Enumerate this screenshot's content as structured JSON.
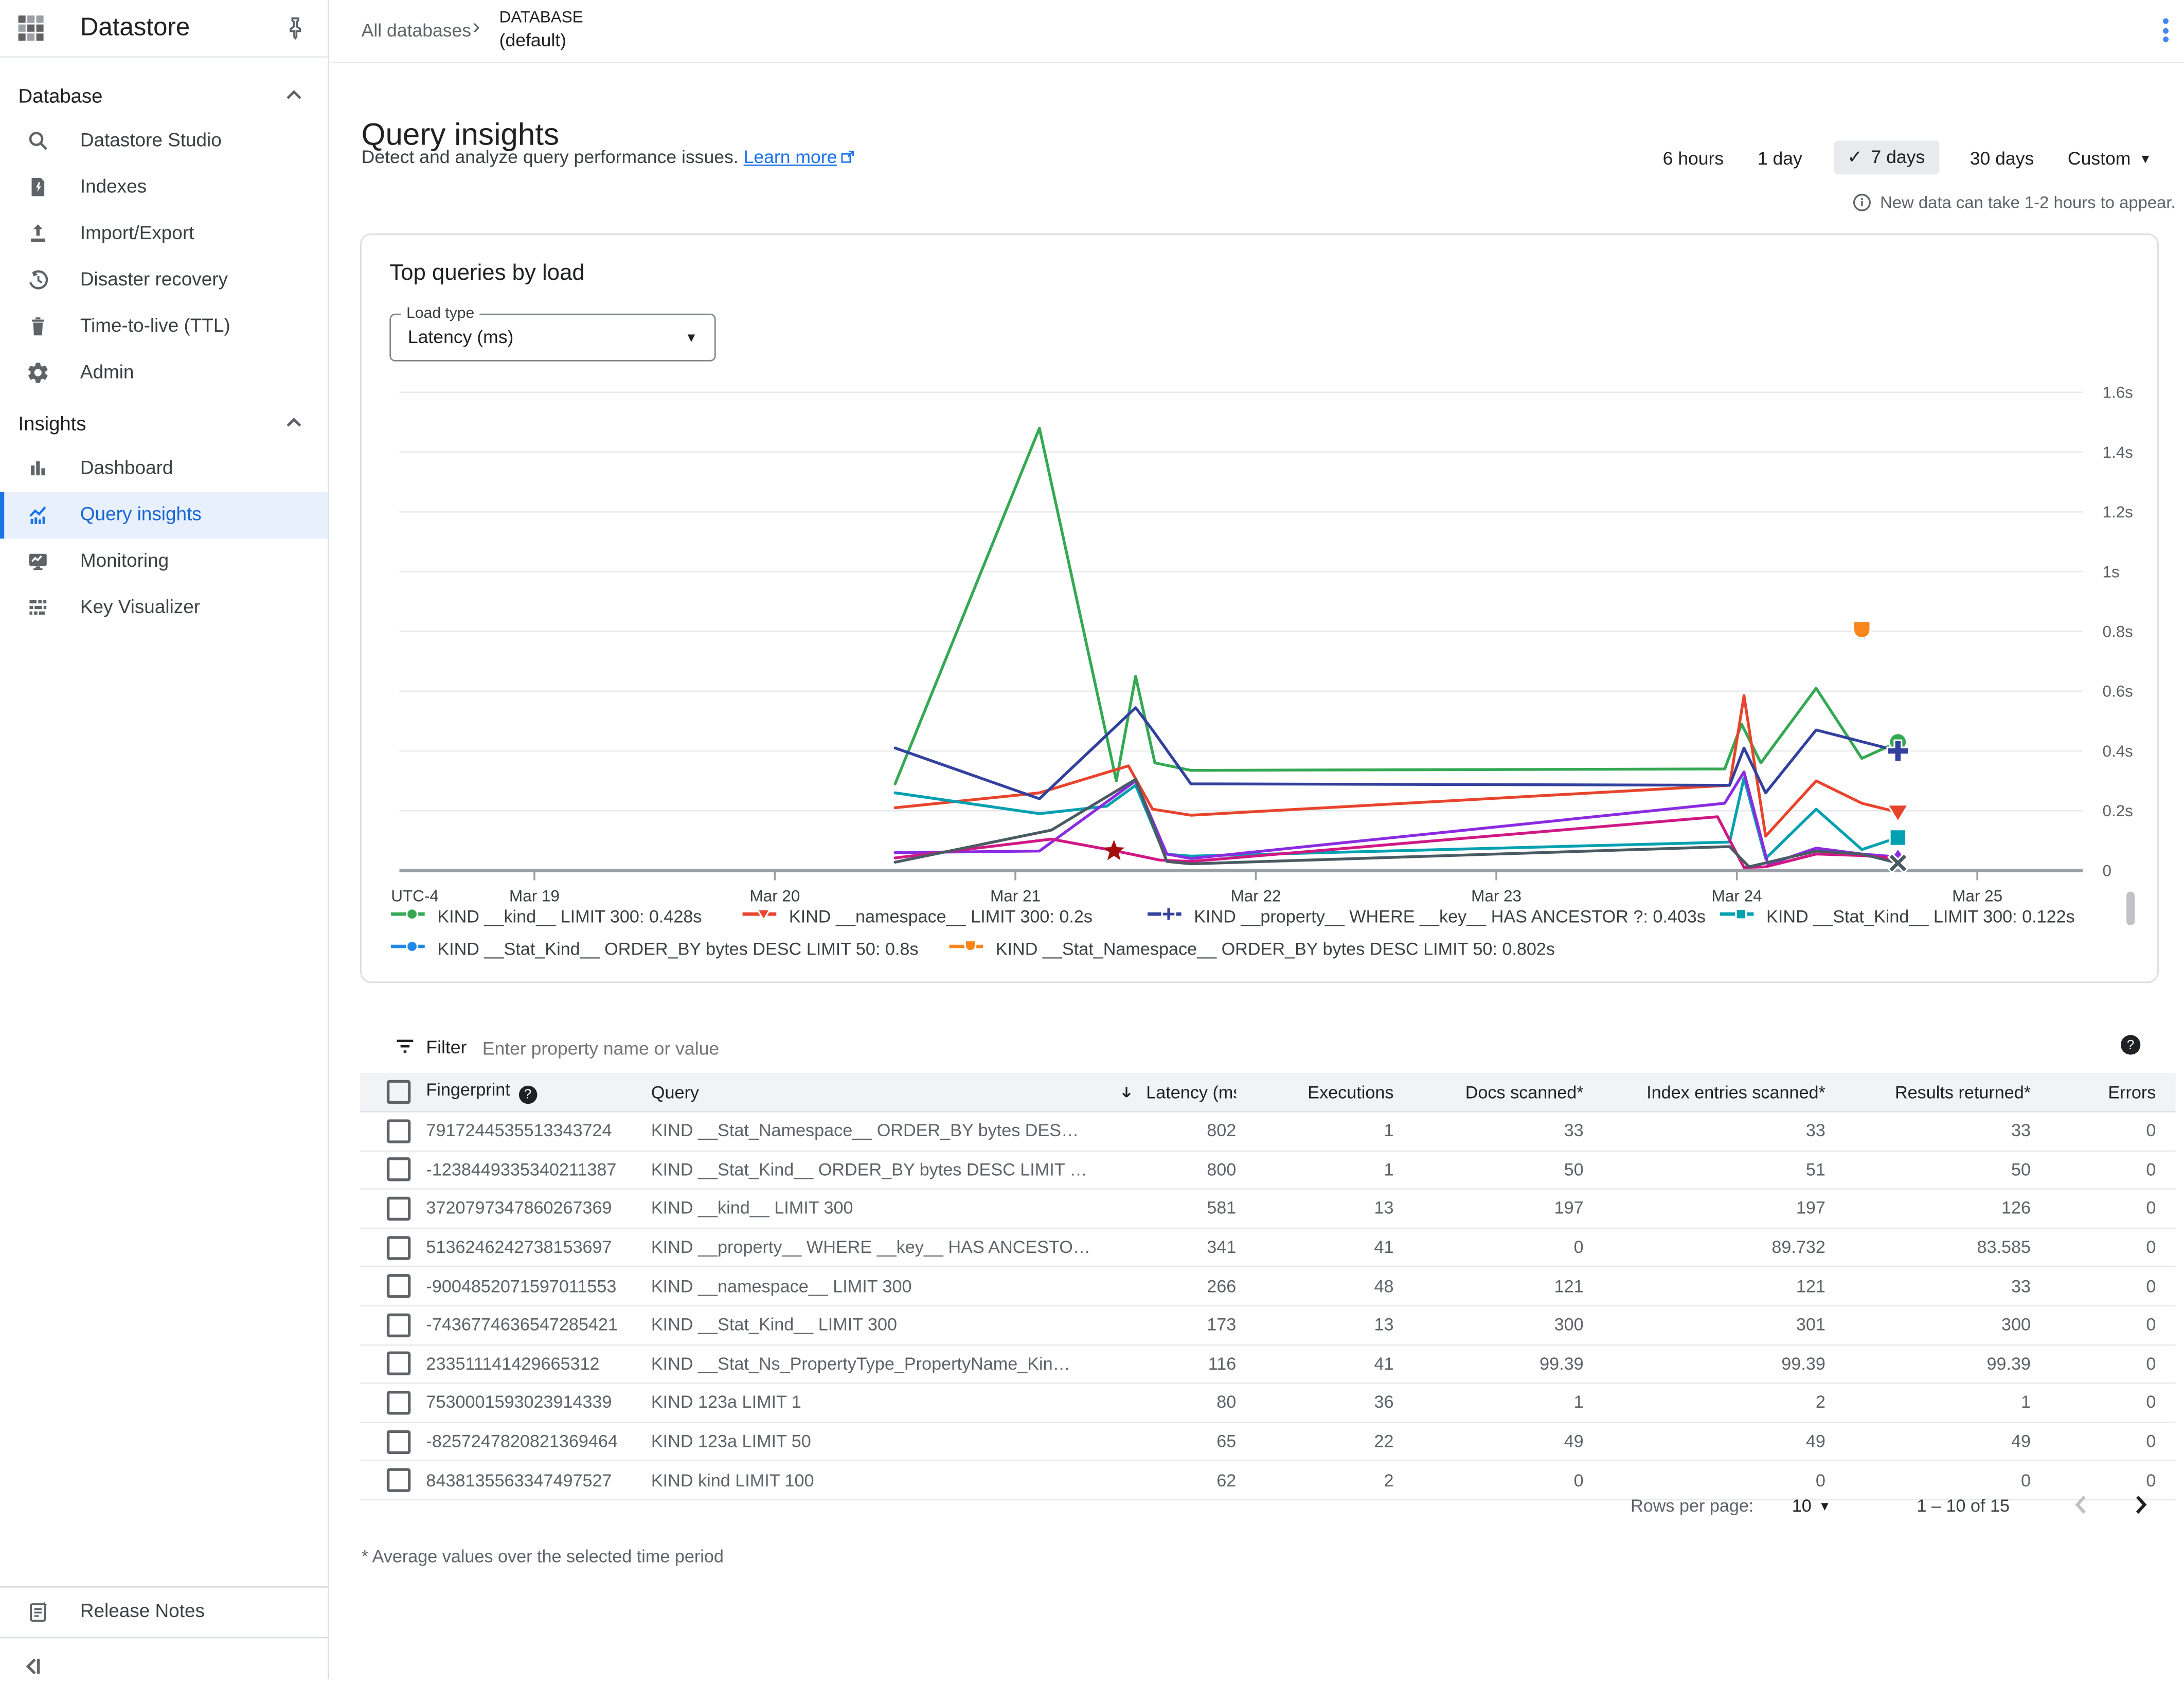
{
  "sidebar": {
    "title": "Datastore",
    "sections": [
      {
        "label": "Database",
        "items": [
          {
            "icon": "search",
            "label": "Datastore Studio"
          },
          {
            "icon": "indexes",
            "label": "Indexes"
          },
          {
            "icon": "import-export",
            "label": "Import/Export"
          },
          {
            "icon": "disaster-recovery",
            "label": "Disaster recovery"
          },
          {
            "icon": "ttl-trash",
            "label": "Time-to-live (TTL)"
          },
          {
            "icon": "admin-gear",
            "label": "Admin"
          }
        ]
      },
      {
        "label": "Insights",
        "items": [
          {
            "icon": "dashboard",
            "label": "Dashboard"
          },
          {
            "icon": "query-insights",
            "label": "Query insights",
            "active": true
          },
          {
            "icon": "monitoring",
            "label": "Monitoring"
          },
          {
            "icon": "key-visualizer",
            "label": "Key Visualizer"
          }
        ]
      }
    ],
    "release_notes": "Release Notes"
  },
  "breadcrumb": {
    "all_databases": "All databases",
    "separator": "›",
    "database_label": "DATABASE",
    "database_name": "(default)"
  },
  "page": {
    "title": "Query insights",
    "subtitle": "Detect and analyze query performance issues.",
    "learn_more": "Learn more"
  },
  "time_range": {
    "options": [
      "6 hours",
      "1 day",
      "7 days",
      "30 days",
      "Custom"
    ],
    "selected": "7 days",
    "note": "New data can take 1-2 hours to appear."
  },
  "chart_card": {
    "title": "Top queries by load",
    "load_type_label": "Load type",
    "load_type_value": "Latency (ms)"
  },
  "chart_data": {
    "type": "line",
    "x_axis_prefix": "UTC-4",
    "x_ticks": [
      {
        "label": "Mar 19",
        "day": 19
      },
      {
        "label": "Mar 20",
        "day": 20
      },
      {
        "label": "Mar 21",
        "day": 21
      },
      {
        "label": "Mar 22",
        "day": 22
      },
      {
        "label": "Mar 23",
        "day": 23
      },
      {
        "label": "Mar 24",
        "day": 24
      },
      {
        "label": "Mar 25",
        "day": 25
      }
    ],
    "y_ticks": [
      {
        "label": "1.6s",
        "value": 1.6
      },
      {
        "label": "1.4s",
        "value": 1.4
      },
      {
        "label": "1.2s",
        "value": 1.2
      },
      {
        "label": "1s",
        "value": 1.0
      },
      {
        "label": "0.8s",
        "value": 0.8
      },
      {
        "label": "0.6s",
        "value": 0.6
      },
      {
        "label": "0.4s",
        "value": 0.4
      },
      {
        "label": "0.2s",
        "value": 0.2
      },
      {
        "label": "0",
        "value": 0
      }
    ],
    "ylim": [
      0,
      1.65
    ],
    "grid": true,
    "legend_position": "bottom",
    "series": [
      {
        "name": "KIND __kind__ LIMIT 300: 0.428s",
        "color": "#34a853",
        "marker": "circle",
        "in_legend": true,
        "points": [
          [
            20.5,
            0.29
          ],
          [
            21.1,
            1.48
          ],
          [
            21.42,
            0.3
          ],
          [
            21.5,
            0.65
          ],
          [
            21.58,
            0.36
          ],
          [
            21.73,
            0.335
          ],
          [
            23.95,
            0.34
          ],
          [
            24.02,
            0.49
          ],
          [
            24.1,
            0.36
          ],
          [
            24.33,
            0.61
          ],
          [
            24.52,
            0.375
          ],
          [
            24.67,
            0.43
          ]
        ]
      },
      {
        "name": "KIND __namespace__ LIMIT 300: 0.2s",
        "color": "#e8442c",
        "marker": "triangle-down",
        "in_legend": true,
        "points": [
          [
            20.5,
            0.21
          ],
          [
            21.1,
            0.26
          ],
          [
            21.47,
            0.35
          ],
          [
            21.57,
            0.205
          ],
          [
            21.73,
            0.185
          ],
          [
            23.97,
            0.285
          ],
          [
            24.03,
            0.585
          ],
          [
            24.12,
            0.115
          ],
          [
            24.33,
            0.3
          ],
          [
            24.52,
            0.225
          ],
          [
            24.67,
            0.195
          ]
        ]
      },
      {
        "name": "KIND __property__ WHERE __key__ HAS ANCESTOR ?: 0.403s",
        "color": "#32409e",
        "marker": "plus",
        "in_legend": true,
        "points": [
          [
            20.5,
            0.41
          ],
          [
            21.1,
            0.24
          ],
          [
            21.5,
            0.545
          ],
          [
            21.57,
            0.47
          ],
          [
            21.73,
            0.29
          ],
          [
            23.97,
            0.285
          ],
          [
            24.03,
            0.41
          ],
          [
            24.12,
            0.26
          ],
          [
            24.33,
            0.47
          ],
          [
            24.67,
            0.4
          ]
        ]
      },
      {
        "name": "KIND __Stat_Kind__ LIMIT 300: 0.122s",
        "color": "#00a0b0",
        "marker": "square",
        "in_legend": true,
        "points": [
          [
            20.5,
            0.26
          ],
          [
            21.1,
            0.19
          ],
          [
            21.38,
            0.215
          ],
          [
            21.5,
            0.285
          ],
          [
            21.62,
            0.055
          ],
          [
            21.73,
            0.048
          ],
          [
            23.97,
            0.095
          ],
          [
            24.03,
            0.31
          ],
          [
            24.12,
            0.04
          ],
          [
            24.33,
            0.205
          ],
          [
            24.52,
            0.07
          ],
          [
            24.67,
            0.11
          ]
        ]
      },
      {
        "name": "KIND __Stat_Kind__ ORDER_BY bytes DESC LIMIT 50: 0.8s",
        "color": "#1e88e5",
        "marker": "circle",
        "in_legend": true,
        "points": [
          [
            24.52,
            0.8
          ]
        ]
      },
      {
        "name": "KIND __Stat_Namespace__ ORDER_BY bytes DESC LIMIT 50: 0.802s",
        "color": "#f8861d",
        "marker": "u-shape",
        "in_legend": true,
        "points": [
          [
            24.52,
            0.802
          ]
        ]
      },
      {
        "name": "",
        "color": "#8a2be2",
        "marker": "diamond",
        "in_legend": false,
        "points": [
          [
            20.5,
            0.06
          ],
          [
            21.1,
            0.065
          ],
          [
            21.5,
            0.3
          ],
          [
            21.63,
            0.055
          ],
          [
            21.73,
            0.04
          ],
          [
            23.95,
            0.225
          ],
          [
            24.03,
            0.33
          ],
          [
            24.13,
            0.02
          ],
          [
            24.33,
            0.075
          ],
          [
            24.52,
            0.055
          ],
          [
            24.67,
            0.045
          ]
        ]
      },
      {
        "name": "",
        "color": "#d01884",
        "marker": "none",
        "in_legend": false,
        "points": [
          [
            20.5,
            0.042
          ],
          [
            21.15,
            0.105
          ],
          [
            21.42,
            0.065
          ],
          [
            21.6,
            0.035
          ],
          [
            21.73,
            0.03
          ],
          [
            23.92,
            0.18
          ],
          [
            24.03,
            0.01
          ],
          [
            24.12,
            0.012
          ],
          [
            24.33,
            0.055
          ],
          [
            24.52,
            0.05
          ],
          [
            24.67,
            0.04
          ]
        ]
      },
      {
        "name": "",
        "color": "#4a5a63",
        "marker": "x",
        "in_legend": false,
        "points": [
          [
            20.5,
            0.028
          ],
          [
            21.15,
            0.135
          ],
          [
            21.5,
            0.305
          ],
          [
            21.63,
            0.03
          ],
          [
            21.73,
            0.022
          ],
          [
            23.97,
            0.08
          ],
          [
            24.05,
            0.012
          ],
          [
            24.33,
            0.065
          ],
          [
            24.52,
            0.055
          ],
          [
            24.67,
            0.025
          ]
        ]
      },
      {
        "name": "",
        "color": "#a50e0e",
        "marker": "star",
        "in_legend": false,
        "points": [
          [
            21.41,
            0.065
          ]
        ]
      }
    ]
  },
  "filter": {
    "label": "Filter",
    "placeholder": "Enter property name or value"
  },
  "table": {
    "columns": [
      {
        "label": "Fingerprint",
        "help": true,
        "align": "left"
      },
      {
        "label": "Query",
        "align": "left"
      },
      {
        "label": "Latency (ms)*",
        "align": "right",
        "sorted": "desc"
      },
      {
        "label": "Executions",
        "align": "right"
      },
      {
        "label": "Docs scanned*",
        "align": "right"
      },
      {
        "label": "Index entries scanned*",
        "align": "right"
      },
      {
        "label": "Results returned*",
        "align": "right"
      },
      {
        "label": "Errors",
        "align": "right"
      }
    ],
    "rows": [
      {
        "fingerprint": "7917244535513343724",
        "query": "KIND __Stat_Namespace__ ORDER_BY bytes DES…",
        "latency": "802",
        "executions": "1",
        "docs": "33",
        "index_entries": "33",
        "results": "33",
        "errors": "0"
      },
      {
        "fingerprint": "-1238449335340211387",
        "query": "KIND __Stat_Kind__ ORDER_BY bytes DESC LIMIT …",
        "latency": "800",
        "executions": "1",
        "docs": "50",
        "index_entries": "51",
        "results": "50",
        "errors": "0"
      },
      {
        "fingerprint": "3720797347860267369",
        "query": "KIND __kind__ LIMIT 300",
        "latency": "581",
        "executions": "13",
        "docs": "197",
        "index_entries": "197",
        "results": "126",
        "errors": "0"
      },
      {
        "fingerprint": "5136246242738153697",
        "query": "KIND __property__ WHERE __key__ HAS ANCESTO…",
        "latency": "341",
        "executions": "41",
        "docs": "0",
        "index_entries": "89.732",
        "results": "83.585",
        "errors": "0"
      },
      {
        "fingerprint": "-9004852071597011553",
        "query": "KIND __namespace__ LIMIT 300",
        "latency": "266",
        "executions": "48",
        "docs": "121",
        "index_entries": "121",
        "results": "33",
        "errors": "0"
      },
      {
        "fingerprint": "-7436774636547285421",
        "query": "KIND __Stat_Kind__ LIMIT 300",
        "latency": "173",
        "executions": "13",
        "docs": "300",
        "index_entries": "301",
        "results": "300",
        "errors": "0"
      },
      {
        "fingerprint": "233511141429665312",
        "query": "KIND __Stat_Ns_PropertyType_PropertyName_Kin…",
        "latency": "116",
        "executions": "41",
        "docs": "99.39",
        "index_entries": "99.39",
        "results": "99.39",
        "errors": "0"
      },
      {
        "fingerprint": "7530001593023914339",
        "query": "KIND 123a LIMIT 1",
        "latency": "80",
        "executions": "36",
        "docs": "1",
        "index_entries": "2",
        "results": "1",
        "errors": "0"
      },
      {
        "fingerprint": "-8257247820821369464",
        "query": "KIND 123a LIMIT 50",
        "latency": "65",
        "executions": "22",
        "docs": "49",
        "index_entries": "49",
        "results": "49",
        "errors": "0"
      },
      {
        "fingerprint": "8438135563347497527",
        "query": "KIND kind LIMIT 100",
        "latency": "62",
        "executions": "2",
        "docs": "0",
        "index_entries": "0",
        "results": "0",
        "errors": "0"
      }
    ]
  },
  "pagination": {
    "rows_per_page_label": "Rows per page:",
    "rows_per_page": "10",
    "range": "1 – 10 of 15"
  },
  "footnote": "* Average values over the selected time period",
  "theme": {
    "accent": "#1a73e8",
    "active_item_bg": "#e8f0fe",
    "kebab_color": "#4285f4"
  }
}
